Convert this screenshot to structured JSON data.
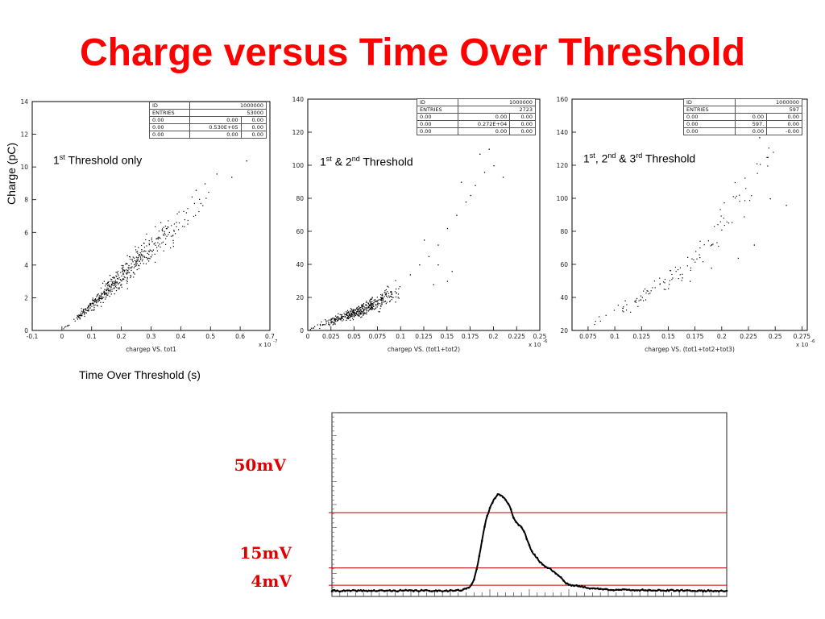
{
  "page": {
    "title": "Charge versus Time Over Threshold",
    "y_axis_title": "Charge (pC)",
    "x_axis_title": "Time Over Threshold (s)"
  },
  "colors": {
    "title": "#ff0000",
    "threshold_line": "#c00000",
    "mv_label": "#e00000",
    "points": "#000000"
  },
  "panels": [
    {
      "label_main": "1",
      "label_sup": "st",
      "label_rest": " Threshold only",
      "axis_caption": "chargep VS. tot1",
      "exponent": "x 10",
      "exponent_sup": "-7",
      "stats": {
        "id_label": "ID",
        "id_value": "1000000",
        "entries_label": "ENTRIES",
        "entries_value": "53000",
        "rows": [
          [
            "0.00",
            "0.00",
            "0.00"
          ],
          [
            "0.00",
            "0.530E+05",
            "0.00"
          ],
          [
            "0.00",
            "0.00",
            "0.00"
          ]
        ]
      }
    },
    {
      "label_main": "1",
      "label_sup": "st",
      "label_mid": " & 2",
      "label_sup2": "nd",
      "label_rest": " Threshold",
      "axis_caption": "chargep VS. (tot1+tot2)",
      "exponent": "x 10",
      "exponent_sup": "-6",
      "stats": {
        "id_label": "ID",
        "id_value": "1000000",
        "entries_label": "ENTRIES",
        "entries_value": "2723",
        "rows": [
          [
            "0.00",
            "0.00",
            "0.00"
          ],
          [
            "0.00",
            "0.272E+04",
            "0.00"
          ],
          [
            "0.00",
            "0.00",
            "0.00"
          ]
        ]
      }
    },
    {
      "label_main": "1",
      "label_sup": "st",
      "label_mid": ", 2",
      "label_sup2": "nd",
      "label_mid2": " & 3",
      "label_sup3": "rd",
      "label_rest": " Threshold",
      "axis_caption": "chargep VS. (tot1+tot2+tot3)",
      "exponent": "x 10",
      "exponent_sup": "-6",
      "stats": {
        "id_label": "ID",
        "id_value": "1000000",
        "entries_label": "ENTRIES",
        "entries_value": "597",
        "rows": [
          [
            "0.00",
            "0.00",
            "0.00"
          ],
          [
            "0.00",
            "597.",
            "0.00"
          ],
          [
            "0.00",
            "0.00",
            "-0.00"
          ]
        ]
      }
    }
  ],
  "mv_labels": {
    "high": "50mV",
    "mid": "15mV",
    "low": "4mV"
  },
  "chart_data": [
    {
      "type": "scatter",
      "title": "",
      "xlabel": "chargep VS. tot1",
      "ylabel": "Charge (pC)",
      "x_scale": "x 10^-7",
      "xlim": [
        -0.1,
        0.7
      ],
      "ylim": [
        0,
        14
      ],
      "xticks": [
        "-0.1",
        "0",
        "0.1",
        "0.2",
        "0.3",
        "0.4",
        "0.5",
        "0.6",
        "0.7"
      ],
      "yticks": [
        "0",
        "2",
        "4",
        "6",
        "8",
        "10",
        "12",
        "14"
      ],
      "band": {
        "x": [
          0.0,
          0.05,
          0.1,
          0.15,
          0.2,
          0.25,
          0.3,
          0.35,
          0.4,
          0.45,
          0.5
        ],
        "y_center": [
          0.05,
          0.8,
          1.6,
          2.5,
          3.4,
          4.3,
          5.1,
          5.9,
          6.7,
          7.5,
          8.3
        ],
        "y_spread": [
          0.05,
          0.2,
          0.35,
          0.5,
          0.7,
          0.85,
          0.95,
          0.95,
          0.9,
          0.8,
          0.7
        ],
        "density": [
          10,
          60,
          90,
          90,
          80,
          65,
          45,
          25,
          12,
          6,
          3
        ]
      },
      "outliers": [
        [
          0.52,
          9.6
        ],
        [
          0.62,
          10.4
        ],
        [
          0.45,
          8.6
        ],
        [
          0.48,
          9.0
        ],
        [
          0.57,
          9.4
        ],
        [
          0.2,
          4.0
        ],
        [
          0.16,
          3.4
        ]
      ]
    },
    {
      "type": "scatter",
      "title": "",
      "xlabel": "chargep VS. (tot1+tot2)",
      "ylabel": "",
      "x_scale": "x 10^-6",
      "xlim": [
        0,
        0.25
      ],
      "ylim": [
        0,
        140
      ],
      "xticks": [
        "0",
        "0.025",
        "0.05",
        "0.075",
        "0.1",
        "0.125",
        "0.15",
        "0.175",
        "0.2",
        "0.225",
        "0.25"
      ],
      "yticks": [
        "0",
        "20",
        "40",
        "60",
        "80",
        "100",
        "120",
        "140"
      ],
      "band": {
        "x": [
          0.0,
          0.01,
          0.025,
          0.04,
          0.05,
          0.06,
          0.07,
          0.08,
          0.09,
          0.1
        ],
        "y_center": [
          1,
          3,
          6,
          9,
          11,
          13,
          16,
          19,
          22,
          26
        ],
        "y_spread": [
          1,
          1.5,
          2,
          2.5,
          3,
          3.5,
          4,
          5,
          6,
          7
        ],
        "density": [
          5,
          25,
          60,
          80,
          80,
          70,
          55,
          35,
          15,
          6
        ]
      },
      "outliers": [
        [
          0.12,
          40
        ],
        [
          0.13,
          45
        ],
        [
          0.14,
          52
        ],
        [
          0.15,
          62
        ],
        [
          0.16,
          70
        ],
        [
          0.17,
          78
        ],
        [
          0.18,
          88
        ],
        [
          0.19,
          96
        ],
        [
          0.2,
          100
        ],
        [
          0.21,
          93
        ],
        [
          0.15,
          30
        ],
        [
          0.14,
          40
        ],
        [
          0.125,
          55
        ],
        [
          0.11,
          34
        ],
        [
          0.175,
          82
        ],
        [
          0.165,
          90
        ],
        [
          0.185,
          107
        ],
        [
          0.195,
          110
        ],
        [
          0.155,
          36
        ],
        [
          0.135,
          28
        ]
      ]
    },
    {
      "type": "scatter",
      "title": "",
      "xlabel": "chargep VS. (tot1+tot2+tot3)",
      "ylabel": "",
      "x_scale": "x 10^-6",
      "xlim": [
        0.06,
        0.28
      ],
      "ylim": [
        20,
        160
      ],
      "xticks": [
        "0.075",
        "0.1",
        "0.125",
        "0.15",
        "0.175",
        "0.2",
        "0.225",
        "0.25",
        "0.275"
      ],
      "yticks": [
        "20",
        "40",
        "60",
        "80",
        "100",
        "120",
        "140",
        "160"
      ],
      "band": {
        "x": [
          0.08,
          0.1,
          0.12,
          0.14,
          0.16,
          0.18,
          0.2,
          0.22,
          0.24,
          0.25
        ],
        "y_center": [
          25,
          31,
          38,
          46,
          56,
          68,
          84,
          102,
          122,
          132
        ],
        "y_spread": [
          2,
          3,
          4,
          5,
          6,
          8,
          10,
          12,
          12,
          10
        ],
        "density": [
          6,
          14,
          20,
          20,
          18,
          15,
          12,
          9,
          6,
          3
        ]
      },
      "outliers": [
        [
          0.26,
          96
        ],
        [
          0.245,
          100
        ],
        [
          0.23,
          72
        ],
        [
          0.215,
          64
        ],
        [
          0.19,
          58
        ],
        [
          0.17,
          50
        ],
        [
          0.25,
          145
        ],
        [
          0.24,
          140
        ],
        [
          0.235,
          137
        ]
      ]
    },
    {
      "type": "line",
      "title": "",
      "xlabel": "",
      "ylabel": "",
      "xlim": [
        0,
        100
      ],
      "ylim": [
        0,
        100
      ],
      "threshold_levels": [
        50,
        15,
        4
      ],
      "x": [
        0,
        10,
        20,
        30,
        33,
        35,
        36,
        37,
        38,
        39,
        40,
        41,
        42,
        43,
        44,
        45,
        46,
        47,
        48,
        49,
        50,
        51,
        52,
        53,
        54,
        55,
        56,
        57,
        58,
        59,
        60,
        62,
        64,
        66,
        70,
        75,
        80,
        85,
        90,
        95,
        100
      ],
      "values": [
        0.5,
        0.5,
        0.6,
        0.6,
        0.8,
        3,
        8,
        18,
        32,
        45,
        53,
        58,
        62,
        61,
        58,
        54,
        47,
        43,
        41,
        36,
        29,
        24,
        21,
        18,
        16,
        15,
        13,
        11,
        9,
        6,
        4.5,
        3.5,
        2.8,
        2,
        1.3,
        1,
        0.9,
        0.7,
        0.6,
        0.5,
        0.5
      ]
    }
  ]
}
